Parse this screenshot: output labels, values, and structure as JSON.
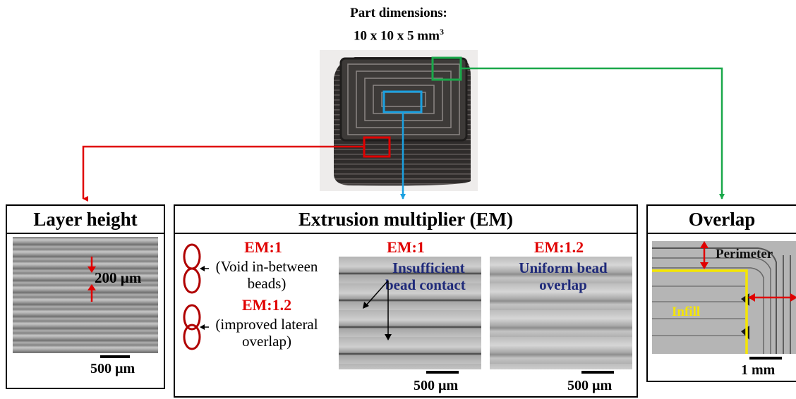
{
  "header": {
    "line1": "Part dimensions:",
    "line2": "10 x 10 x 5 mm",
    "line2_sup": "3"
  },
  "colors": {
    "red": "#e00000",
    "blue": "#1aa0e0",
    "green": "#1aa84a",
    "yellow": "#f5e600",
    "navy": "#1f2a7a",
    "part": "#3a3735"
  },
  "panels": {
    "layer_height": {
      "title": "Layer height",
      "dimension": "200 µm",
      "scale": "500 µm"
    },
    "em": {
      "title": "Extrusion multiplier (EM)",
      "legend": {
        "em1_label": "EM:1",
        "em1_note_1": "(Void in-between",
        "em1_note_2": "beads)",
        "em12_label": "EM:1.2",
        "em12_note_1": "(improved lateral",
        "em12_note_2": "overlap)"
      },
      "image1": {
        "label": "EM:1",
        "annotation_1": "Insufficient",
        "annotation_2": "bead contact",
        "scale": "500 µm"
      },
      "image2": {
        "label": "EM:1.2",
        "annotation_1": "Uniform bead",
        "annotation_2": "overlap",
        "scale": "500 µm"
      }
    },
    "overlap": {
      "title": "Overlap",
      "perimeter": "Perimeter",
      "infill": "Infill",
      "scale": "1 mm"
    }
  }
}
